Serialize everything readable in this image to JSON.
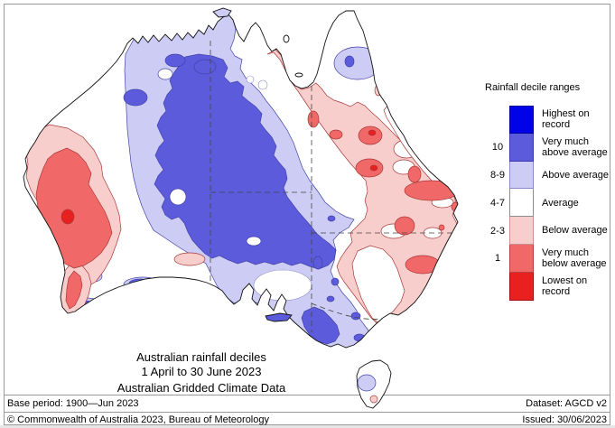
{
  "legend": {
    "title": "Rainfall decile ranges",
    "items": [
      {
        "key": "hr",
        "range": "",
        "lines": [
          "Highest on",
          "record"
        ],
        "color": "#0202E8",
        "border": "#00009A"
      },
      {
        "key": "vma",
        "range": "10",
        "lines": [
          "Very much",
          "above average"
        ],
        "color": "#5B5BDC",
        "border": "#3A3AAE"
      },
      {
        "key": "aa",
        "range": "8-9",
        "lines": [
          "Above average"
        ],
        "color": "#CCCCF4",
        "border": "#8888C8"
      },
      {
        "key": "avg",
        "range": "4-7",
        "lines": [
          "Average"
        ],
        "color": "#FFFFFF",
        "border": "#8C8C8C"
      },
      {
        "key": "ba",
        "range": "2-3",
        "lines": [
          "Below average"
        ],
        "color": "#F8CECC",
        "border": "#C89090"
      },
      {
        "key": "vmb",
        "range": "1",
        "lines": [
          "Very much",
          "below average"
        ],
        "color": "#F06867",
        "border": "#B84040"
      },
      {
        "key": "lr",
        "range": "",
        "lines": [
          "Lowest on",
          "record"
        ],
        "color": "#E82120",
        "border": "#A01010"
      }
    ]
  },
  "title_block": {
    "line1": "Australian rainfall deciles",
    "line2": "1 April to 30 June 2023",
    "line3": "Australian Gridded Climate Data"
  },
  "footer": {
    "base_period": "Base period: 1900—Jun 2023",
    "dataset": "Dataset: AGCD v2",
    "copyright": "© Commonwealth of Australia 2023, Bureau of Meteorology",
    "issued": "Issued: 30/06/2023"
  }
}
